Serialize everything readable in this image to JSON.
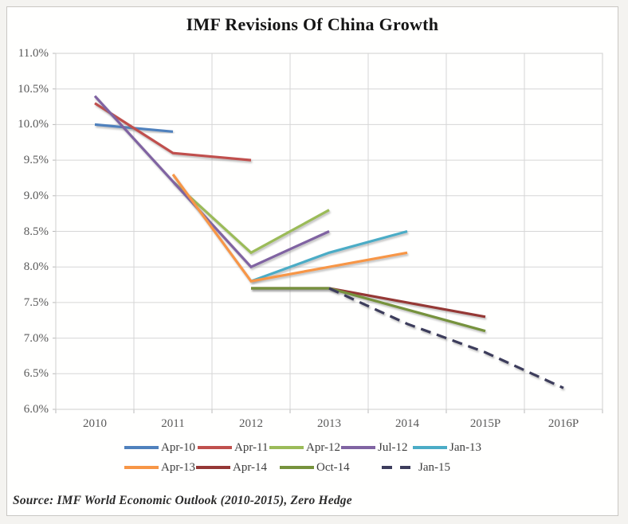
{
  "title": "IMF Revisions Of China Growth",
  "source_note": "Source: IMF World Economic Outlook (2010-2015), Zero Hedge",
  "chart_data": {
    "type": "line",
    "title": "IMF Revisions Of China Growth",
    "categories": [
      "2010",
      "2011",
      "2012",
      "2013",
      "2014",
      "2015P",
      "2016P"
    ],
    "y_axis": {
      "min": 6.0,
      "max": 11.0,
      "step": 0.5,
      "format": "percent",
      "tick_labels": [
        "11.0%",
        "10.5%",
        "10.0%",
        "9.5%",
        "9.0%",
        "8.5%",
        "8.0%",
        "7.5%",
        "7.0%",
        "6.5%",
        "6.0%"
      ]
    },
    "grid": "both",
    "gridline_color": "#d6d6d6",
    "legend_position": "bottom",
    "series": [
      {
        "name": "Apr-10",
        "color": "#4F81BD",
        "dashed": false,
        "values": [
          10.0,
          9.9,
          null,
          null,
          null,
          null,
          null
        ]
      },
      {
        "name": "Apr-11",
        "color": "#C0504D",
        "dashed": false,
        "values": [
          10.3,
          9.6,
          9.5,
          null,
          null,
          null,
          null
        ]
      },
      {
        "name": "Apr-12",
        "color": "#9BBB59",
        "dashed": false,
        "values": [
          null,
          9.2,
          8.2,
          8.8,
          null,
          null,
          null
        ]
      },
      {
        "name": "Jul-12",
        "color": "#8064A2",
        "dashed": false,
        "values": [
          10.4,
          9.2,
          8.0,
          8.5,
          null,
          null,
          null
        ]
      },
      {
        "name": "Jan-13",
        "color": "#4BACC6",
        "dashed": false,
        "values": [
          null,
          null,
          7.8,
          8.2,
          8.5,
          null,
          null
        ]
      },
      {
        "name": "Apr-13",
        "color": "#F79646",
        "dashed": false,
        "values": [
          null,
          9.3,
          7.8,
          8.0,
          8.2,
          null,
          null
        ]
      },
      {
        "name": "Apr-14",
        "color": "#953735",
        "dashed": false,
        "values": [
          null,
          null,
          7.7,
          7.7,
          7.5,
          7.3,
          null
        ]
      },
      {
        "name": "Oct-14",
        "color": "#76923C",
        "dashed": false,
        "values": [
          null,
          null,
          7.7,
          7.7,
          7.4,
          7.1,
          null
        ]
      },
      {
        "name": "Jan-15",
        "color": "#3D3D5C",
        "dashed": true,
        "values": [
          null,
          null,
          null,
          7.7,
          7.2,
          6.8,
          6.3
        ]
      }
    ],
    "legend_rows": [
      [
        "Apr-10",
        "Apr-11",
        "Apr-12",
        "Jul-12",
        "Jan-13"
      ],
      [
        "Apr-13",
        "Apr-14",
        "Oct-14",
        "Jan-15"
      ]
    ]
  }
}
